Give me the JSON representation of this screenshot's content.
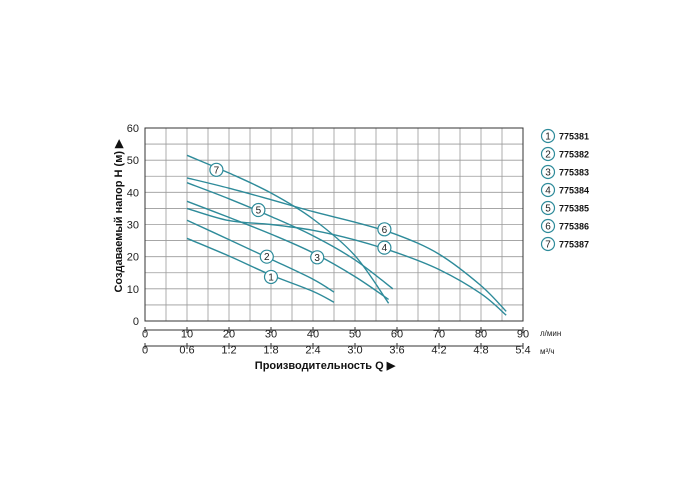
{
  "chart_data": {
    "type": "line",
    "title": "",
    "ylabel": "Создаваемый напор H (м) ▶",
    "xlabel": "Производительность Q ▶",
    "x_unit": "л/мин",
    "x2_unit": "м³/ч",
    "xlim": [
      0,
      90
    ],
    "ylim": [
      0,
      60
    ],
    "x_ticks": [
      "0",
      "10",
      "20",
      "30",
      "40",
      "50",
      "60",
      "70",
      "80",
      "90"
    ],
    "x2_ticks": [
      "0",
      "0.6",
      "1.2",
      "1.8",
      "2.4",
      "3.0",
      "3.6",
      "4.2",
      "4.8",
      "5.4"
    ],
    "y_ticks": [
      "0",
      "10",
      "20",
      "30",
      "40",
      "50",
      "60"
    ],
    "grid": true,
    "legend_position": "right",
    "colors": {
      "line": "#2e8b9a",
      "grid": "#9a9a9a",
      "axis": "#333333"
    },
    "series": [
      {
        "name": "775381",
        "marker": "1",
        "marker_at": [
          30,
          13.7
        ],
        "x": [
          10,
          20,
          30,
          40,
          45
        ],
        "y": [
          25.7,
          20.2,
          14.3,
          9.2,
          5.8
        ]
      },
      {
        "name": "775382",
        "marker": "2",
        "marker_at": [
          29,
          20
        ],
        "x": [
          10,
          20,
          30,
          40,
          45
        ],
        "y": [
          31.3,
          25.3,
          19.2,
          13.0,
          9.0
        ]
      },
      {
        "name": "775383",
        "marker": "3",
        "marker_at": [
          41,
          19.8
        ],
        "x": [
          10,
          20,
          30,
          40,
          50,
          58
        ],
        "y": [
          37.2,
          32.2,
          27.0,
          21.2,
          13.8,
          6.7
        ]
      },
      {
        "name": "775384",
        "marker": "4",
        "marker_at": [
          57,
          22.8
        ],
        "x": [
          10,
          20,
          30,
          40,
          50,
          60,
          70,
          80,
          86
        ],
        "y": [
          35.0,
          31.2,
          30.0,
          28.2,
          25.2,
          21.2,
          16.0,
          8.5,
          1.8
        ]
      },
      {
        "name": "775385",
        "marker": "5",
        "marker_at": [
          27,
          34.5
        ],
        "x": [
          10,
          20,
          30,
          40,
          50,
          59
        ],
        "y": [
          43.0,
          38.0,
          32.5,
          26.5,
          19.0,
          10.0
        ]
      },
      {
        "name": "775386",
        "marker": "6",
        "marker_at": [
          57,
          28.5
        ],
        "x": [
          10,
          20,
          30,
          40,
          50,
          60,
          70,
          80,
          86
        ],
        "y": [
          44.5,
          41.3,
          37.7,
          34.0,
          30.7,
          26.8,
          20.8,
          11.0,
          3.0
        ]
      },
      {
        "name": "775387",
        "marker": "7",
        "marker_at": [
          17,
          47
        ],
        "x": [
          10,
          20,
          30,
          40,
          50,
          58
        ],
        "y": [
          51.5,
          46.0,
          39.8,
          31.7,
          20.3,
          5.5
        ]
      }
    ],
    "legend": [
      {
        "marker": "1",
        "label": "775381"
      },
      {
        "marker": "2",
        "label": "775382"
      },
      {
        "marker": "3",
        "label": "775383"
      },
      {
        "marker": "4",
        "label": "775384"
      },
      {
        "marker": "5",
        "label": "775385"
      },
      {
        "marker": "6",
        "label": "775386"
      },
      {
        "marker": "7",
        "label": "775387"
      }
    ]
  }
}
